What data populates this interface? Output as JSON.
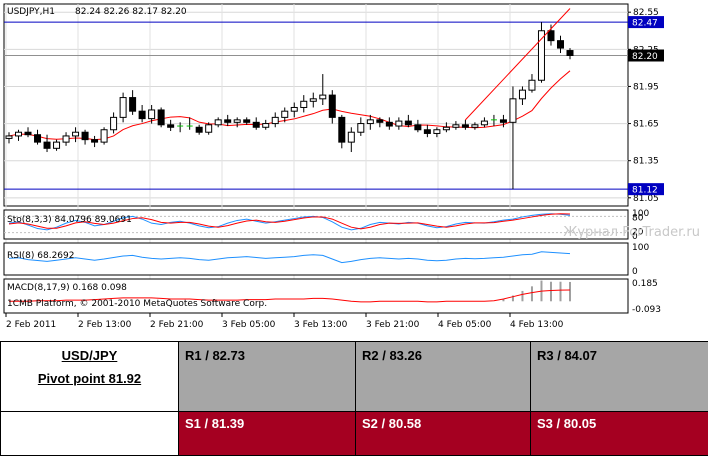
{
  "chart_data": {
    "type": "candlestick",
    "title": "USDJPY,H1",
    "ohlc_readout": "82.24 82.26 82.17 82.20",
    "price_ticks": [
      "82.55",
      "82.25",
      "81.95",
      "81.65",
      "81.35",
      "81.05"
    ],
    "price_range": [
      81.0,
      82.6
    ],
    "hlines": [
      {
        "label": "82.47",
        "value": 82.47,
        "color": "#0000c0"
      },
      {
        "label": "81.12",
        "value": 81.12,
        "color": "#0000c0"
      }
    ],
    "current_price": {
      "label": "82.20",
      "value": 82.2
    },
    "x_labels": [
      "2 Feb 2011",
      "2 Feb 13:00",
      "2 Feb 21:00",
      "3 Feb 05:00",
      "3 Feb 13:00",
      "3 Feb 21:00",
      "4 Feb 05:00",
      "4 Feb 13:00"
    ],
    "candles": [
      [
        81.53,
        81.58,
        81.49,
        81.55
      ],
      [
        81.55,
        81.6,
        81.51,
        81.58
      ],
      [
        81.58,
        81.62,
        81.54,
        81.56
      ],
      [
        81.56,
        81.6,
        81.48,
        81.5
      ],
      [
        81.5,
        81.56,
        81.42,
        81.45
      ],
      [
        81.45,
        81.52,
        81.43,
        81.5
      ],
      [
        81.5,
        81.58,
        81.47,
        81.55
      ],
      [
        81.55,
        81.62,
        81.5,
        81.58
      ],
      [
        81.58,
        81.6,
        81.48,
        81.52
      ],
      [
        81.52,
        81.55,
        81.46,
        81.5
      ],
      [
        81.5,
        81.62,
        81.48,
        81.6
      ],
      [
        81.6,
        81.74,
        81.57,
        81.7
      ],
      [
        81.7,
        81.9,
        81.66,
        81.86
      ],
      [
        81.86,
        81.92,
        81.72,
        81.75
      ],
      [
        81.75,
        81.8,
        81.66,
        81.69
      ],
      [
        81.69,
        81.8,
        81.65,
        81.76
      ],
      [
        81.76,
        81.78,
        81.62,
        81.64
      ],
      [
        81.64,
        81.68,
        81.59,
        81.62
      ],
      [
        81.62,
        81.66,
        81.58,
        81.63
      ],
      [
        81.63,
        81.7,
        81.6,
        81.62
      ],
      [
        81.62,
        81.64,
        81.56,
        81.58
      ],
      [
        81.58,
        81.66,
        81.56,
        81.64
      ],
      [
        81.64,
        81.7,
        81.62,
        81.68
      ],
      [
        81.68,
        81.72,
        81.63,
        81.66
      ],
      [
        81.66,
        81.7,
        81.62,
        81.68
      ],
      [
        81.68,
        81.7,
        81.64,
        81.66
      ],
      [
        81.66,
        81.7,
        81.6,
        81.62
      ],
      [
        81.62,
        81.68,
        81.6,
        81.65
      ],
      [
        81.65,
        81.74,
        81.62,
        81.7
      ],
      [
        81.7,
        81.78,
        81.66,
        81.75
      ],
      [
        81.75,
        81.82,
        81.7,
        81.78
      ],
      [
        81.78,
        81.88,
        81.74,
        81.83
      ],
      [
        81.83,
        81.9,
        81.78,
        81.85
      ],
      [
        81.85,
        82.05,
        81.8,
        81.88
      ],
      [
        81.88,
        81.92,
        81.65,
        81.7
      ],
      [
        81.7,
        81.72,
        81.45,
        81.5
      ],
      [
        81.5,
        81.62,
        81.42,
        81.58
      ],
      [
        81.58,
        81.7,
        81.55,
        81.65
      ],
      [
        81.65,
        81.72,
        81.6,
        81.68
      ],
      [
        81.68,
        81.7,
        81.62,
        81.66
      ],
      [
        81.66,
        81.7,
        81.6,
        81.63
      ],
      [
        81.63,
        81.7,
        81.6,
        81.67
      ],
      [
        81.67,
        81.72,
        81.62,
        81.64
      ],
      [
        81.64,
        81.68,
        81.58,
        81.6
      ],
      [
        81.6,
        81.64,
        81.54,
        81.57
      ],
      [
        81.57,
        81.62,
        81.54,
        81.6
      ],
      [
        81.6,
        81.66,
        81.58,
        81.62
      ],
      [
        81.62,
        81.67,
        81.6,
        81.64
      ],
      [
        81.64,
        81.68,
        81.6,
        81.62
      ],
      [
        81.62,
        81.66,
        81.6,
        81.64
      ],
      [
        81.64,
        81.7,
        81.62,
        81.67
      ],
      [
        81.67,
        81.72,
        81.63,
        81.68
      ],
      [
        81.68,
        81.72,
        81.62,
        81.66
      ],
      [
        81.66,
        81.95,
        81.12,
        81.85
      ],
      [
        81.85,
        81.95,
        81.8,
        81.92
      ],
      [
        81.92,
        82.05,
        81.9,
        82.0
      ],
      [
        82.0,
        82.47,
        81.98,
        82.4
      ],
      [
        82.4,
        82.45,
        82.28,
        82.32
      ],
      [
        82.32,
        82.36,
        82.22,
        82.26
      ],
      [
        82.24,
        82.26,
        82.17,
        82.2
      ]
    ],
    "ma_label": "",
    "trendline": {
      "from": [
        48,
        81.68
      ],
      "to": [
        59,
        82.58
      ],
      "color": "#ff0000"
    },
    "indicators": [
      {
        "name": "Sto(8,3,3)",
        "readout": "84.0796 89.0691",
        "ticks": [
          "100",
          "80",
          "20",
          "0"
        ],
        "range": [
          0,
          100
        ],
        "main": [
          55,
          60,
          48,
          35,
          30,
          40,
          55,
          65,
          58,
          45,
          50,
          62,
          75,
          80,
          70,
          55,
          50,
          58,
          62,
          55,
          45,
          38,
          42,
          55,
          65,
          70,
          62,
          55,
          60,
          66,
          72,
          78,
          80,
          76,
          60,
          40,
          30,
          36,
          50,
          58,
          55,
          52,
          58,
          55,
          45,
          38,
          42,
          52,
          58,
          56,
          55,
          60,
          66,
          70,
          78,
          84,
          88,
          90,
          88,
          84
        ],
        "signal": [
          52,
          56,
          52,
          44,
          36,
          36,
          45,
          56,
          60,
          54,
          50,
          55,
          64,
          72,
          75,
          68,
          58,
          55,
          58,
          58,
          52,
          44,
          40,
          46,
          55,
          63,
          66,
          60,
          58,
          62,
          68,
          74,
          78,
          78,
          70,
          55,
          40,
          34,
          40,
          50,
          55,
          54,
          55,
          56,
          50,
          44,
          40,
          45,
          52,
          56,
          56,
          57,
          62,
          66,
          72,
          78,
          84,
          88,
          90,
          89
        ]
      },
      {
        "name": "RSI(8)",
        "readout": "68.2692",
        "ticks": [
          "100",
          "0"
        ],
        "range": [
          0,
          100
        ],
        "values": [
          52,
          54,
          48,
          45,
          42,
          46,
          50,
          54,
          50,
          46,
          50,
          55,
          60,
          62,
          56,
          52,
          50,
          52,
          54,
          52,
          48,
          46,
          50,
          54,
          56,
          58,
          55,
          52,
          54,
          56,
          58,
          62,
          64,
          62,
          50,
          38,
          42,
          48,
          52,
          54,
          52,
          50,
          52,
          50,
          46,
          44,
          46,
          50,
          52,
          51,
          52,
          54,
          56,
          60,
          64,
          66,
          74,
          72,
          70,
          68
        ]
      },
      {
        "name": "MACD(8,17,9)",
        "readout": "0.168 0.098",
        "ticks": [
          "0.185",
          "-0.093"
        ],
        "range": [
          -0.093,
          0.185
        ],
        "hist": [
          0,
          0,
          0,
          0,
          0,
          0,
          0,
          0,
          0,
          0,
          0,
          0,
          0,
          0,
          0,
          0,
          0,
          0,
          0,
          0,
          0,
          0,
          0,
          0,
          0,
          0,
          0,
          0,
          0,
          0,
          0,
          0,
          0,
          0,
          0,
          0,
          0,
          0,
          0,
          0,
          0,
          0,
          0,
          0,
          0,
          0,
          0,
          0,
          0,
          0,
          0,
          0,
          0.02,
          0.05,
          0.09,
          0.13,
          0.18,
          0.17,
          0.17,
          0.168
        ],
        "signal": [
          0,
          0,
          0,
          0.005,
          0.005,
          0.005,
          0.01,
          0.01,
          0.01,
          0.015,
          0.02,
          0.025,
          0.03,
          0.03,
          0.03,
          0.03,
          0.025,
          0.02,
          0.02,
          0.02,
          0.015,
          0.01,
          0.01,
          0.01,
          0.01,
          0.015,
          0.015,
          0.015,
          0.02,
          0.02,
          0.02,
          0.02,
          0.025,
          0.025,
          0.02,
          0.01,
          0.0,
          -0.005,
          -0.005,
          0.0,
          0.0,
          0.0,
          0.0,
          0.0,
          -0.005,
          -0.005,
          0.0,
          0.0,
          0.0,
          0.0,
          0.0,
          0.005,
          0.02,
          0.04,
          0.06,
          0.075,
          0.088,
          0.094,
          0.097,
          0.098
        ]
      }
    ]
  },
  "copyright": "1CMB Platform, © 2001-2010 MetaQuotes Software Corp.",
  "watermark": "Журнал ForTrader.ru",
  "pivot": {
    "pair": "USD/JPY",
    "pivot_point": "Pivot point 81.92",
    "r1": "R1 / 82.73",
    "r2": "R2 / 83.26",
    "r3": "R3 / 84.07",
    "s1": "S1 / 81.39",
    "s2": "S2 / 80.58",
    "s3": "S3 / 80.05",
    "colors": {
      "resistance": "#a6a6a6",
      "support": "#a50021"
    }
  }
}
